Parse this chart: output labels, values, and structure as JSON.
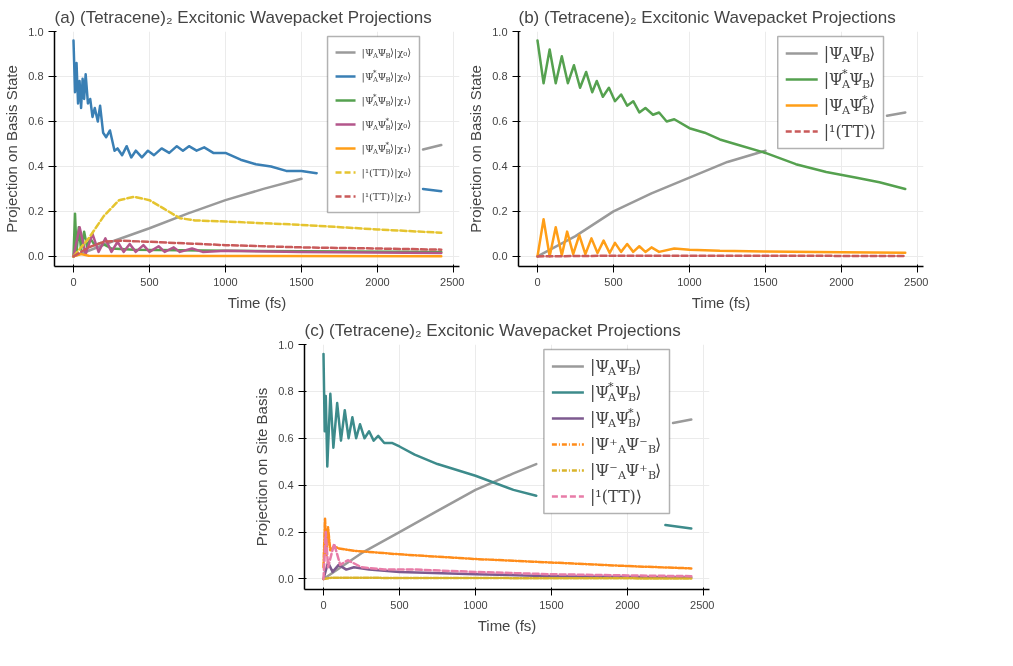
{
  "chart_data": [
    {
      "type": "line",
      "title": "(a) (Tetracene)₂ Excitonic Wavepacket Projections",
      "xlabel": "Time (fs)",
      "ylabel": "Projection on Basis State",
      "xlim": [
        -125,
        2540
      ],
      "ylim": [
        -0.045,
        1.0
      ],
      "xticks": [
        0,
        500,
        1000,
        1500,
        2000,
        2500
      ],
      "yticks": [
        {
          "value": 0.0,
          "label": "0.0"
        },
        {
          "value": 0.2,
          "label": "0.2"
        },
        {
          "value": 0.4,
          "label": "0.4"
        },
        {
          "value": 0.6,
          "label": "0.6"
        },
        {
          "value": 0.8,
          "label": "0.8"
        },
        {
          "value": 1.0,
          "label": "1.0"
        }
      ],
      "grid": true,
      "legend": "top right",
      "series": [
        {
          "name": "|Ψ$_{A}$Ψ$_{B}$⟩|χ₀⟩",
          "color": "#9a9a9a",
          "line_style": "solid",
          "x": [
            0,
            100,
            250,
            500,
            750,
            1000,
            1250,
            1500,
            1750,
            2000,
            2250,
            2300,
            2420
          ],
          "values": [
            0,
            0.025,
            0.065,
            0.125,
            0.19,
            0.25,
            0.3,
            0.345,
            null,
            null,
            null,
            0.475,
            0.495
          ]
        },
        {
          "name": "|Ψ$^{*}$$_{A}$Ψ$_{B}$⟩|χ₀⟩",
          "color": "#3a7fb4",
          "line_style": "solid",
          "x": [
            0,
            10,
            20,
            30,
            40,
            50,
            60,
            70,
            80,
            95,
            110,
            125,
            140,
            160,
            175,
            195,
            215,
            240,
            270,
            290,
            320,
            350,
            380,
            410,
            450,
            490,
            530,
            580,
            630,
            680,
            720,
            760,
            810,
            860,
            920,
            1000,
            1100,
            1200,
            1300,
            1400,
            1500,
            1600,
            1700,
            1800,
            2000,
            2200,
            2300,
            2420
          ],
          "values": [
            0.96,
            0.73,
            0.86,
            0.68,
            0.78,
            0.66,
            0.79,
            0.7,
            0.81,
            0.68,
            0.7,
            0.62,
            0.66,
            0.6,
            0.67,
            0.55,
            0.53,
            0.56,
            0.47,
            0.48,
            0.45,
            0.49,
            0.44,
            0.47,
            0.44,
            0.47,
            0.45,
            0.48,
            0.46,
            0.49,
            0.47,
            0.49,
            0.47,
            0.485,
            0.46,
            0.46,
            0.43,
            0.41,
            0.4,
            0.38,
            0.38,
            0.37,
            null,
            null,
            null,
            null,
            0.3,
            0.29
          ]
        },
        {
          "name": "|Ψ$^{*}$$_{A}$Ψ$_{B}$⟩|χ₁⟩",
          "color": "#55a14f",
          "line_style": "solid",
          "x": [
            0,
            10,
            20,
            35,
            50,
            70,
            90,
            110,
            140,
            180,
            250,
            400,
            1000,
            2420
          ],
          "values": [
            0,
            0.19,
            0.02,
            0.13,
            0.03,
            0.11,
            0.04,
            0.08,
            0.05,
            0.06,
            0.035,
            0.03,
            0.025,
            0.02
          ]
        },
        {
          "name": "|Ψ$_{A}$Ψ$^{*}$$_{B}$⟩|χ₀⟩",
          "color": "#b3568b",
          "line_style": "solid",
          "x": [
            0,
            40,
            80,
            125,
            165,
            210,
            250,
            290,
            330,
            370,
            410,
            460,
            500,
            560,
            600,
            660,
            700,
            780,
            850,
            1000,
            1500,
            2420
          ],
          "values": [
            0,
            0.13,
            0.01,
            0.1,
            0.02,
            0.08,
            0.02,
            0.065,
            0.02,
            0.055,
            0.02,
            0.05,
            0.02,
            0.045,
            0.02,
            0.04,
            0.02,
            0.035,
            0.02,
            0.025,
            0.02,
            0.015
          ]
        },
        {
          "name": "|Ψ$_{A}$Ψ$^{*}$$_{B}$⟩|χ₁⟩",
          "color": "#ff9e17",
          "line_style": "solid",
          "x": [
            0,
            50,
            100,
            300,
            2420
          ],
          "values": [
            0,
            0.01,
            0.003,
            0.002,
            0.001
          ]
        },
        {
          "name": "|¹(TT)⟩|χ₀⟩",
          "color": "#e5c42f",
          "line_style": "dashed",
          "x": [
            0,
            100,
            200,
            300,
            400,
            500,
            600,
            700,
            800,
            1000,
            1500,
            2000,
            2420
          ],
          "values": [
            0,
            0.08,
            0.18,
            0.25,
            0.265,
            0.25,
            0.21,
            0.17,
            0.16,
            0.155,
            0.14,
            0.12,
            0.105
          ]
        },
        {
          "name": "|¹(TT)⟩|χ₁⟩",
          "color": "#c95a5a",
          "line_style": "dashed",
          "x": [
            0,
            100,
            200,
            300,
            500,
            1000,
            1500,
            2000,
            2420
          ],
          "values": [
            0,
            0.04,
            0.065,
            0.07,
            0.065,
            0.05,
            0.04,
            0.035,
            0.03
          ]
        }
      ]
    },
    {
      "type": "line",
      "title": "(b) (Tetracene)₂ Excitonic Wavepacket Projections",
      "xlabel": "Time (fs)",
      "ylabel": "Projection on Basis State",
      "xlim": [
        -125,
        2540
      ],
      "ylim": [
        -0.045,
        1.0
      ],
      "xticks": [
        0,
        500,
        1000,
        1500,
        2000,
        2500
      ],
      "yticks": [
        {
          "value": 0.0,
          "label": "0.0"
        },
        {
          "value": 0.2,
          "label": "0.2"
        },
        {
          "value": 0.4,
          "label": "0.4"
        },
        {
          "value": 0.6,
          "label": "0.6"
        },
        {
          "value": 0.8,
          "label": "0.8"
        },
        {
          "value": 1.0,
          "label": "1.0"
        }
      ],
      "grid": true,
      "legend": "top right",
      "series": [
        {
          "name": "|Ψ$_{A}$Ψ$_{B}$⟩",
          "color": "#9a9a9a",
          "line_style": "solid",
          "x": [
            0,
            250,
            500,
            750,
            1000,
            1250,
            1500,
            1750,
            2000,
            2250,
            2300,
            2420
          ],
          "values": [
            0,
            0.09,
            0.2,
            0.28,
            0.35,
            0.42,
            0.47,
            null,
            null,
            null,
            0.625,
            0.64
          ]
        },
        {
          "name": "|Ψ$^{*}$$_{A}$Ψ$_{B}$⟩",
          "color": "#55a14f",
          "line_style": "solid",
          "x": [
            0,
            40,
            80,
            120,
            160,
            200,
            240,
            280,
            320,
            360,
            390,
            430,
            470,
            510,
            550,
            590,
            630,
            670,
            710,
            760,
            800,
            850,
            900,
            1000,
            1100,
            1200,
            1300,
            1500,
            1700,
            1900,
            2100,
            2250,
            2420
          ],
          "values": [
            0.96,
            0.77,
            0.92,
            0.77,
            0.89,
            0.77,
            0.85,
            0.75,
            0.82,
            0.73,
            0.78,
            0.71,
            0.75,
            0.69,
            0.72,
            0.67,
            0.69,
            0.64,
            0.66,
            0.63,
            0.64,
            0.6,
            0.61,
            0.57,
            0.55,
            0.52,
            0.5,
            0.46,
            0.41,
            0.375,
            0.35,
            0.33,
            0.3
          ]
        },
        {
          "name": "|Ψ$_{A}$Ψ$^{*}$$_{B}$⟩",
          "color": "#ff9e17",
          "line_style": "solid",
          "x": [
            0,
            40,
            80,
            120,
            160,
            195,
            235,
            275,
            315,
            355,
            395,
            435,
            475,
            510,
            550,
            590,
            630,
            670,
            710,
            750,
            800,
            900,
            1000,
            1200,
            1500,
            2000,
            2420
          ],
          "values": [
            0,
            0.165,
            0,
            0.13,
            0.005,
            0.11,
            0.01,
            0.095,
            0.01,
            0.08,
            0.015,
            0.07,
            0.015,
            0.06,
            0.02,
            0.055,
            0.02,
            0.045,
            0.02,
            0.04,
            0.02,
            0.035,
            0.03,
            0.025,
            0.022,
            0.018,
            0.016
          ]
        },
        {
          "name": "|¹(TT)⟩",
          "color": "#c95a5a",
          "line_style": "dashed",
          "x": [
            0,
            500,
            2420
          ],
          "values": [
            0,
            0.003,
            0.002
          ]
        }
      ]
    },
    {
      "type": "line",
      "title": "(c) (Tetracene)₂ Excitonic Wavepacket Projections",
      "xlabel": "Time (fs)",
      "ylabel": "Projection on Site Basis",
      "xlim": [
        -125,
        2540
      ],
      "ylim": [
        -0.045,
        1.0
      ],
      "xticks": [
        0,
        500,
        1000,
        1500,
        2000,
        2500
      ],
      "yticks": [
        {
          "value": 0.0,
          "label": "0.0"
        },
        {
          "value": 0.2,
          "label": "0.2"
        },
        {
          "value": 0.4,
          "label": "0.4"
        },
        {
          "value": 0.6,
          "label": "0.6"
        },
        {
          "value": 0.8,
          "label": "0.8"
        },
        {
          "value": 1.0,
          "label": "1.0"
        }
      ],
      "grid": true,
      "legend": "top right",
      "series": [
        {
          "name": "|Ψ$_{A}$Ψ$_{B}$⟩",
          "color": "#9a9a9a",
          "line_style": "solid",
          "x": [
            0,
            250,
            500,
            750,
            1000,
            1250,
            1400,
            1500,
            1750,
            2000,
            2250,
            2300,
            2420
          ],
          "values": [
            0,
            0.11,
            0.2,
            0.29,
            0.38,
            0.45,
            0.49,
            null,
            null,
            null,
            null,
            0.665,
            0.68
          ]
        },
        {
          "name": "|Ψ$^{*}$$_{A}$Ψ$_{B}$⟩",
          "color": "#3d8b8b",
          "line_style": "solid",
          "x": [
            0,
            8,
            15,
            25,
            45,
            65,
            90,
            115,
            140,
            165,
            190,
            215,
            240,
            270,
            300,
            330,
            360,
            400,
            450,
            500,
            600,
            750,
            1000,
            1250,
            1400,
            1750,
            2000,
            2250,
            2420
          ],
          "values": [
            0.96,
            0.63,
            0.78,
            0.48,
            0.79,
            0.56,
            0.75,
            0.59,
            0.72,
            0.6,
            0.69,
            0.6,
            0.66,
            0.6,
            0.63,
            0.59,
            0.61,
            0.58,
            0.58,
            0.565,
            0.53,
            0.49,
            0.44,
            0.38,
            0.355,
            null,
            null,
            0.23,
            0.215
          ]
        },
        {
          "name": "|Ψ$_{A}$Ψ$^{*}$$_{B}$⟩",
          "color": "#7d5a8f",
          "line_style": "solid",
          "x": [
            0,
            30,
            60,
            100,
            150,
            200,
            300,
            500,
            1000,
            1500,
            2000,
            2420
          ],
          "values": [
            0,
            0.07,
            0.03,
            0.06,
            0.04,
            0.05,
            0.04,
            0.03,
            0.02,
            0.012,
            0.008,
            0.006
          ]
        },
        {
          "name": "|Ψ⁺$_{A}$Ψ⁻$_{B}$⟩",
          "color": "#ff8c1a",
          "line_style": "dashdot",
          "x": [
            0,
            10,
            20,
            30,
            45,
            70,
            100,
            200,
            500,
            1000,
            1500,
            2000,
            2420
          ],
          "values": [
            0.05,
            0.26,
            0.1,
            0.22,
            0.12,
            0.14,
            0.13,
            0.12,
            0.105,
            0.085,
            0.07,
            0.055,
            0.045
          ]
        },
        {
          "name": "|Ψ⁻$_{A}$Ψ⁺$_{B}$⟩",
          "color": "#d9b42b",
          "line_style": "dashdot",
          "x": [
            0,
            50,
            2420
          ],
          "values": [
            0,
            0.005,
            0.002
          ]
        },
        {
          "name": "|¹(TT)⟩",
          "color": "#e87ca8",
          "line_style": "dashed",
          "x": [
            0,
            15,
            30,
            70,
            110,
            160,
            250,
            400,
            600,
            1000,
            1500,
            2000,
            2420
          ],
          "values": [
            0,
            0.2,
            0.05,
            0.15,
            0.06,
            0.08,
            0.05,
            0.04,
            0.04,
            0.03,
            0.02,
            0.015,
            0.012
          ]
        }
      ]
    }
  ]
}
